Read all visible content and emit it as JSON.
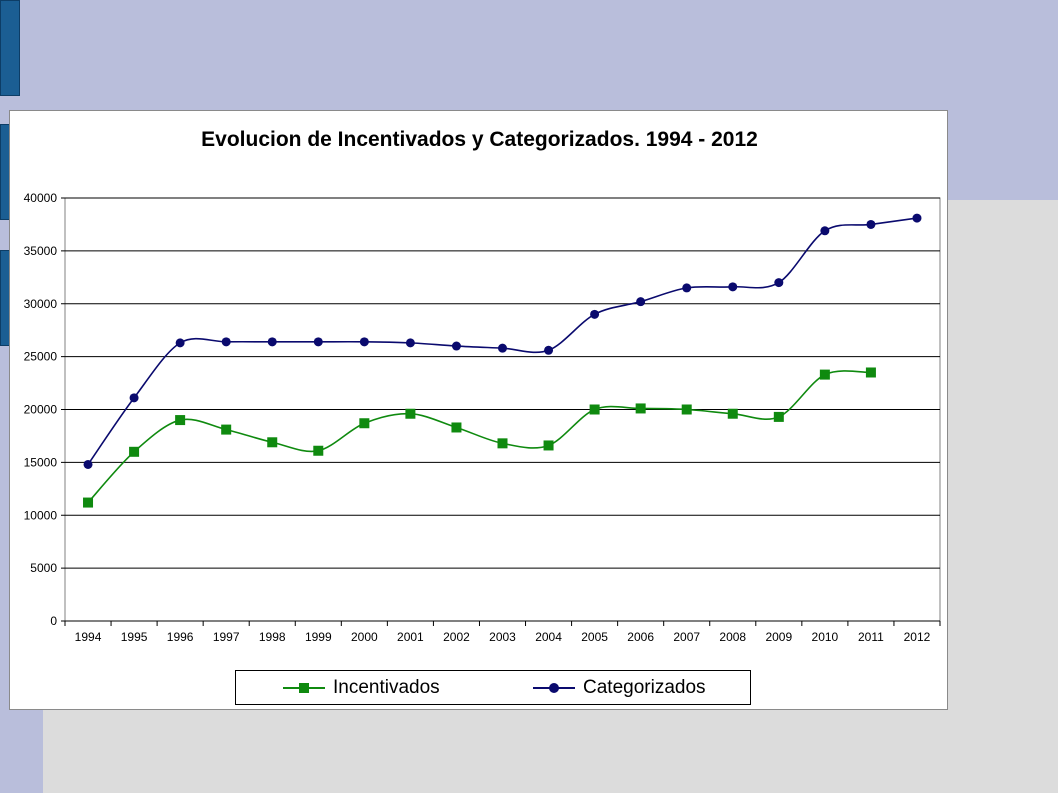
{
  "colors": {
    "incentivados": "#0f8a0f",
    "categorizados": "#0a0a6e",
    "grid": "#000000"
  },
  "chart_data": {
    "type": "line",
    "title": "Evolucion de Incentivados y Categorizados. 1994 - 2012",
    "xlabel": "",
    "ylabel": "",
    "ylim": [
      0,
      40000
    ],
    "yticks": [
      "0",
      "5000",
      "10000",
      "15000",
      "20000",
      "25000",
      "30000",
      "35000",
      "40000"
    ],
    "categories": [
      "1994",
      "1995",
      "1996",
      "1997",
      "1998",
      "1999",
      "2000",
      "2001",
      "2002",
      "2003",
      "2004",
      "2005",
      "2006",
      "2007",
      "2008",
      "2009",
      "2010",
      "2011",
      "2012"
    ],
    "grid": true,
    "legend_position": "bottom",
    "series": [
      {
        "name": "Incentivados",
        "marker": "square",
        "values": [
          11200,
          16000,
          19000,
          18100,
          16900,
          16100,
          18700,
          19600,
          18300,
          16800,
          16600,
          20000,
          20100,
          20000,
          19600,
          19300,
          23300,
          23500,
          null
        ]
      },
      {
        "name": "Categorizados",
        "marker": "circle",
        "values": [
          14800,
          21100,
          26300,
          26400,
          26400,
          26400,
          26400,
          26300,
          26000,
          25800,
          25600,
          29000,
          30200,
          31500,
          31600,
          32000,
          36900,
          37500,
          38100
        ]
      }
    ]
  }
}
